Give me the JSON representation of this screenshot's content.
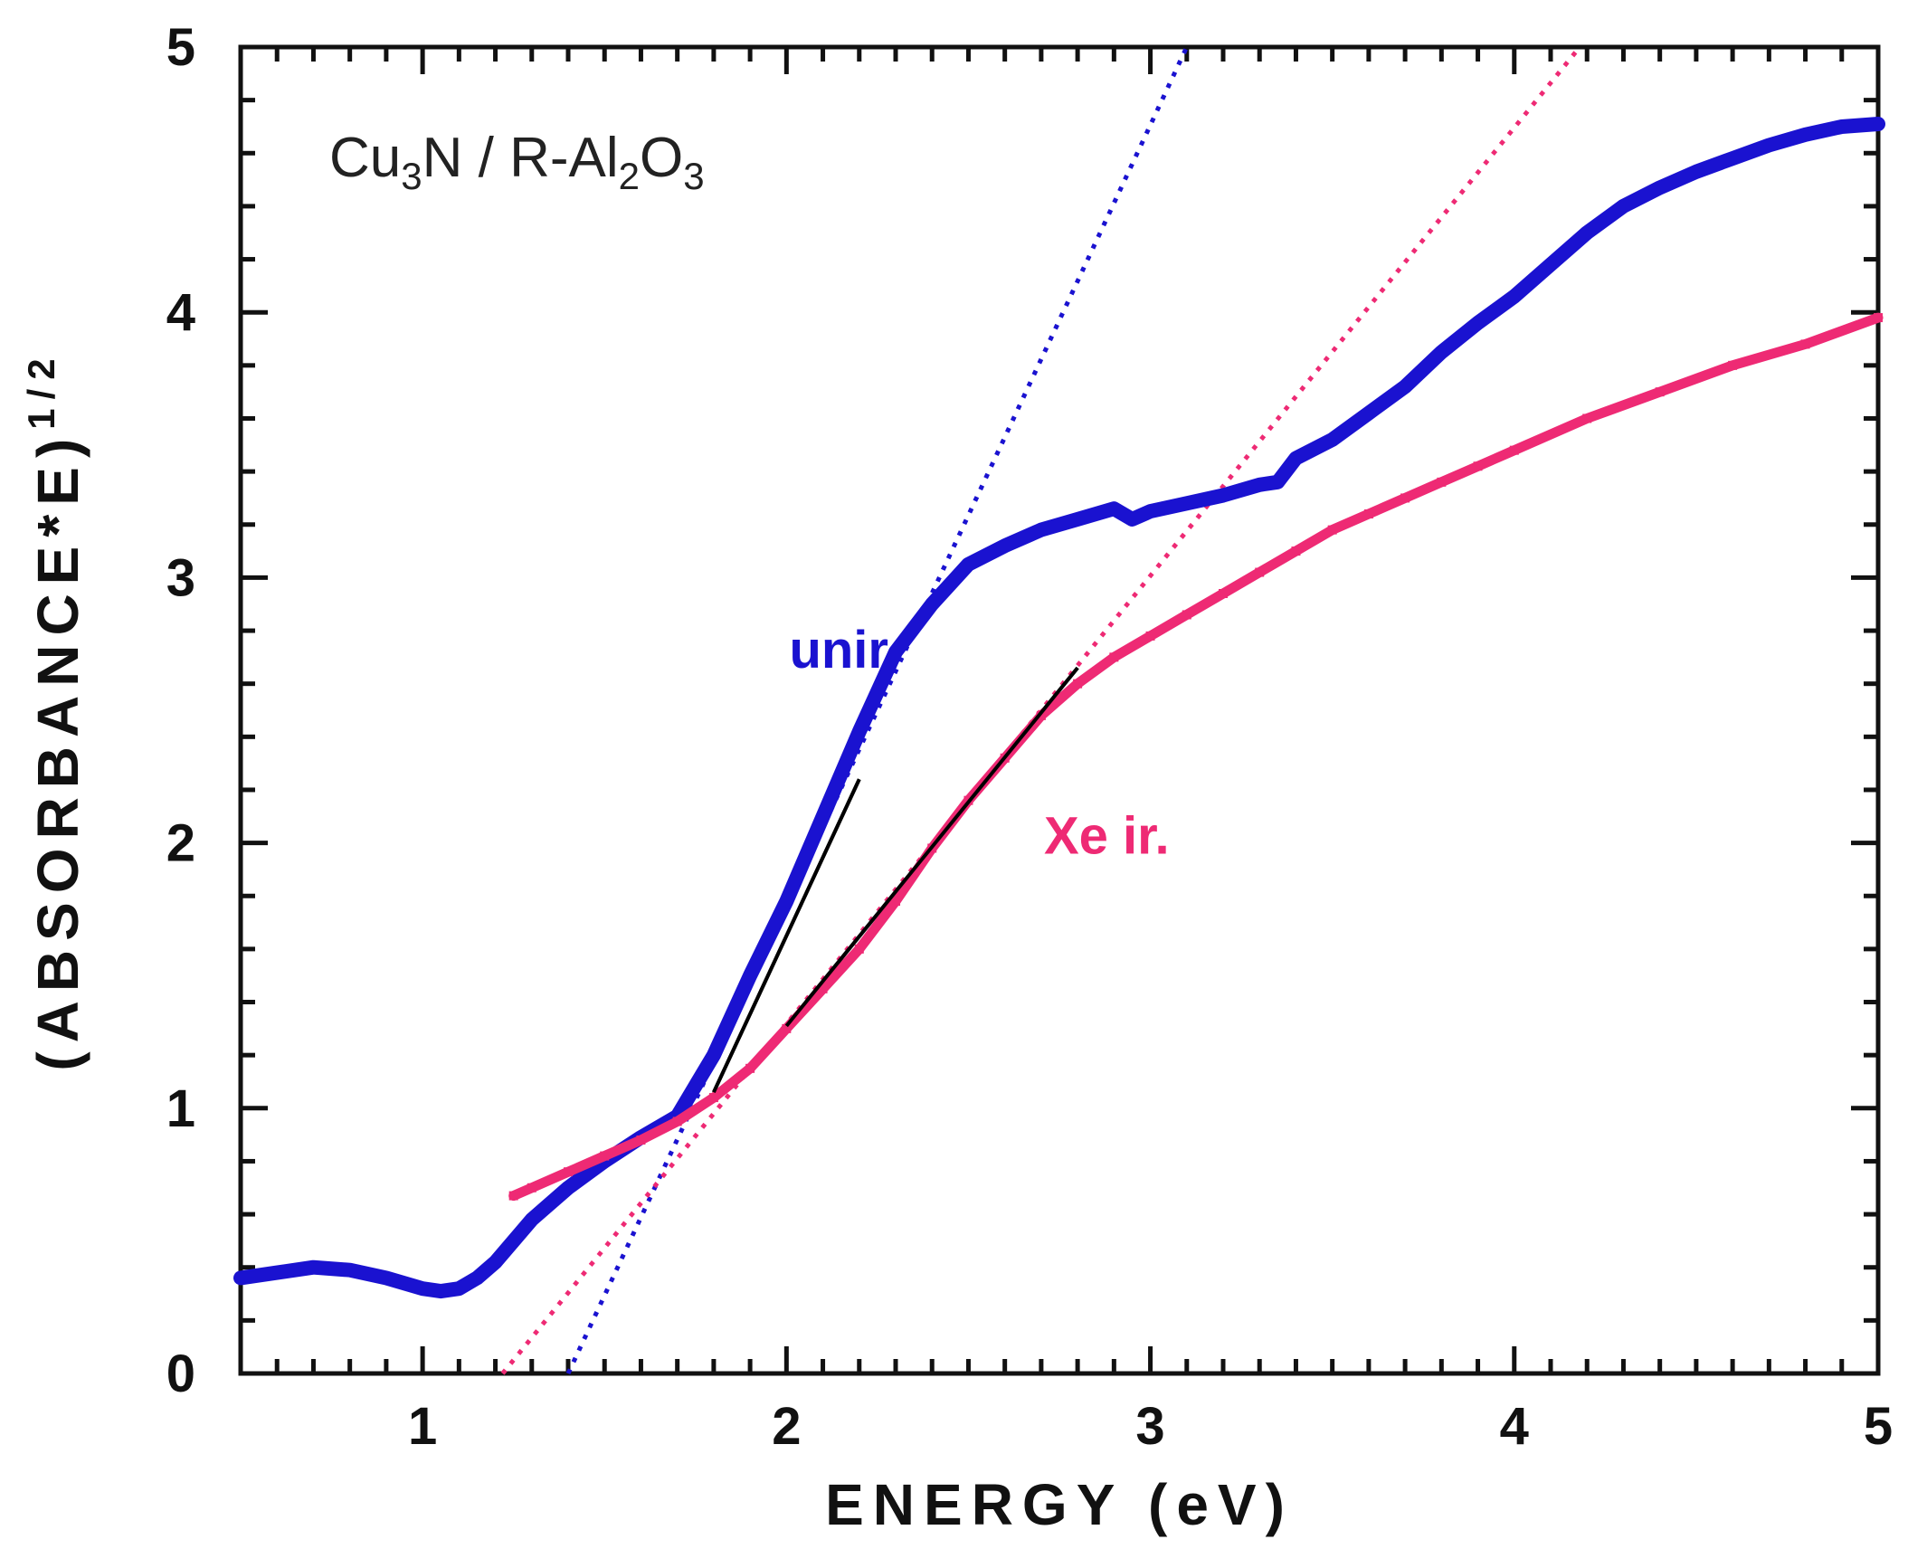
{
  "chart_data": {
    "type": "scatter",
    "title_parts": [
      "Cu",
      "3",
      "N / R-Al",
      "2",
      "O",
      "3"
    ],
    "xlabel": "ENERGY (eV)",
    "ylabel_parts": [
      "(ABSORBANCE*E)",
      "1/2"
    ],
    "xlim": [
      0.5,
      5
    ],
    "ylim": [
      0,
      5
    ],
    "x_ticks": [
      1,
      2,
      3,
      4,
      5
    ],
    "y_ticks": [
      0,
      1,
      2,
      3,
      4,
      5
    ],
    "x_tick_labels": [
      "1",
      "2",
      "3",
      "4",
      "5"
    ],
    "y_tick_labels": [
      "0",
      "1",
      "2",
      "3",
      "4",
      "5"
    ],
    "grid": false,
    "series": [
      {
        "name": "unir.",
        "color": "#1a12d0",
        "x": [
          0.5,
          0.6,
          0.7,
          0.8,
          0.9,
          1.0,
          1.05,
          1.1,
          1.15,
          1.2,
          1.25,
          1.3,
          1.4,
          1.5,
          1.6,
          1.7,
          1.8,
          1.9,
          2.0,
          2.1,
          2.2,
          2.3,
          2.4,
          2.5,
          2.6,
          2.7,
          2.8,
          2.9,
          2.95,
          3.0,
          3.1,
          3.2,
          3.3,
          3.35,
          3.4,
          3.5,
          3.6,
          3.7,
          3.8,
          3.9,
          4.0,
          4.1,
          4.2,
          4.3,
          4.4,
          4.5,
          4.6,
          4.7,
          4.8,
          4.9,
          5.0
        ],
        "y": [
          0.36,
          0.38,
          0.4,
          0.39,
          0.36,
          0.32,
          0.31,
          0.32,
          0.36,
          0.42,
          0.5,
          0.58,
          0.7,
          0.8,
          0.89,
          0.97,
          1.2,
          1.5,
          1.78,
          2.1,
          2.42,
          2.72,
          2.9,
          3.05,
          3.12,
          3.18,
          3.22,
          3.26,
          3.22,
          3.25,
          3.28,
          3.31,
          3.35,
          3.36,
          3.45,
          3.52,
          3.62,
          3.72,
          3.85,
          3.96,
          4.06,
          4.18,
          4.3,
          4.4,
          4.47,
          4.53,
          4.58,
          4.63,
          4.67,
          4.7,
          4.71
        ]
      },
      {
        "name": "Xe ir.",
        "color": "#ee2a74",
        "x": [
          1.25,
          1.3,
          1.4,
          1.5,
          1.6,
          1.7,
          1.8,
          1.9,
          2.0,
          2.1,
          2.2,
          2.3,
          2.4,
          2.5,
          2.6,
          2.7,
          2.8,
          2.9,
          3.0,
          3.1,
          3.2,
          3.3,
          3.4,
          3.5,
          3.6,
          3.7,
          3.8,
          3.9,
          4.0,
          4.2,
          4.4,
          4.6,
          4.8,
          5.0
        ],
        "y": [
          0.67,
          0.7,
          0.76,
          0.82,
          0.88,
          0.95,
          1.04,
          1.15,
          1.3,
          1.45,
          1.6,
          1.78,
          1.98,
          2.16,
          2.32,
          2.48,
          2.6,
          2.7,
          2.78,
          2.86,
          2.94,
          3.02,
          3.1,
          3.18,
          3.24,
          3.3,
          3.36,
          3.42,
          3.48,
          3.6,
          3.7,
          3.8,
          3.88,
          3.98
        ]
      }
    ],
    "fit_lines": [
      {
        "name": "unir. linear fit",
        "color": "#1a12d0",
        "x": [
          1.4,
          3.1
        ],
        "y": [
          0.0,
          5.0
        ]
      },
      {
        "name": "Xe ir. linear fit",
        "color": "#ee2a74",
        "x": [
          1.22,
          4.18
        ],
        "y": [
          0.0,
          5.0
        ]
      },
      {
        "name": "unir. fit region",
        "color": "#000000",
        "x": [
          1.8,
          2.2
        ],
        "y": [
          1.06,
          2.24
        ]
      },
      {
        "name": "Xe ir. fit region",
        "color": "#000000",
        "x": [
          2.0,
          2.8
        ],
        "y": [
          1.31,
          2.66
        ]
      }
    ],
    "annotations": [
      {
        "text": "unir.",
        "x": 2.16,
        "y": 2.66,
        "color": "#1a12d0"
      },
      {
        "text": "Xe ir.",
        "x": 2.88,
        "y": 1.96,
        "color": "#ee2a74"
      }
    ]
  }
}
